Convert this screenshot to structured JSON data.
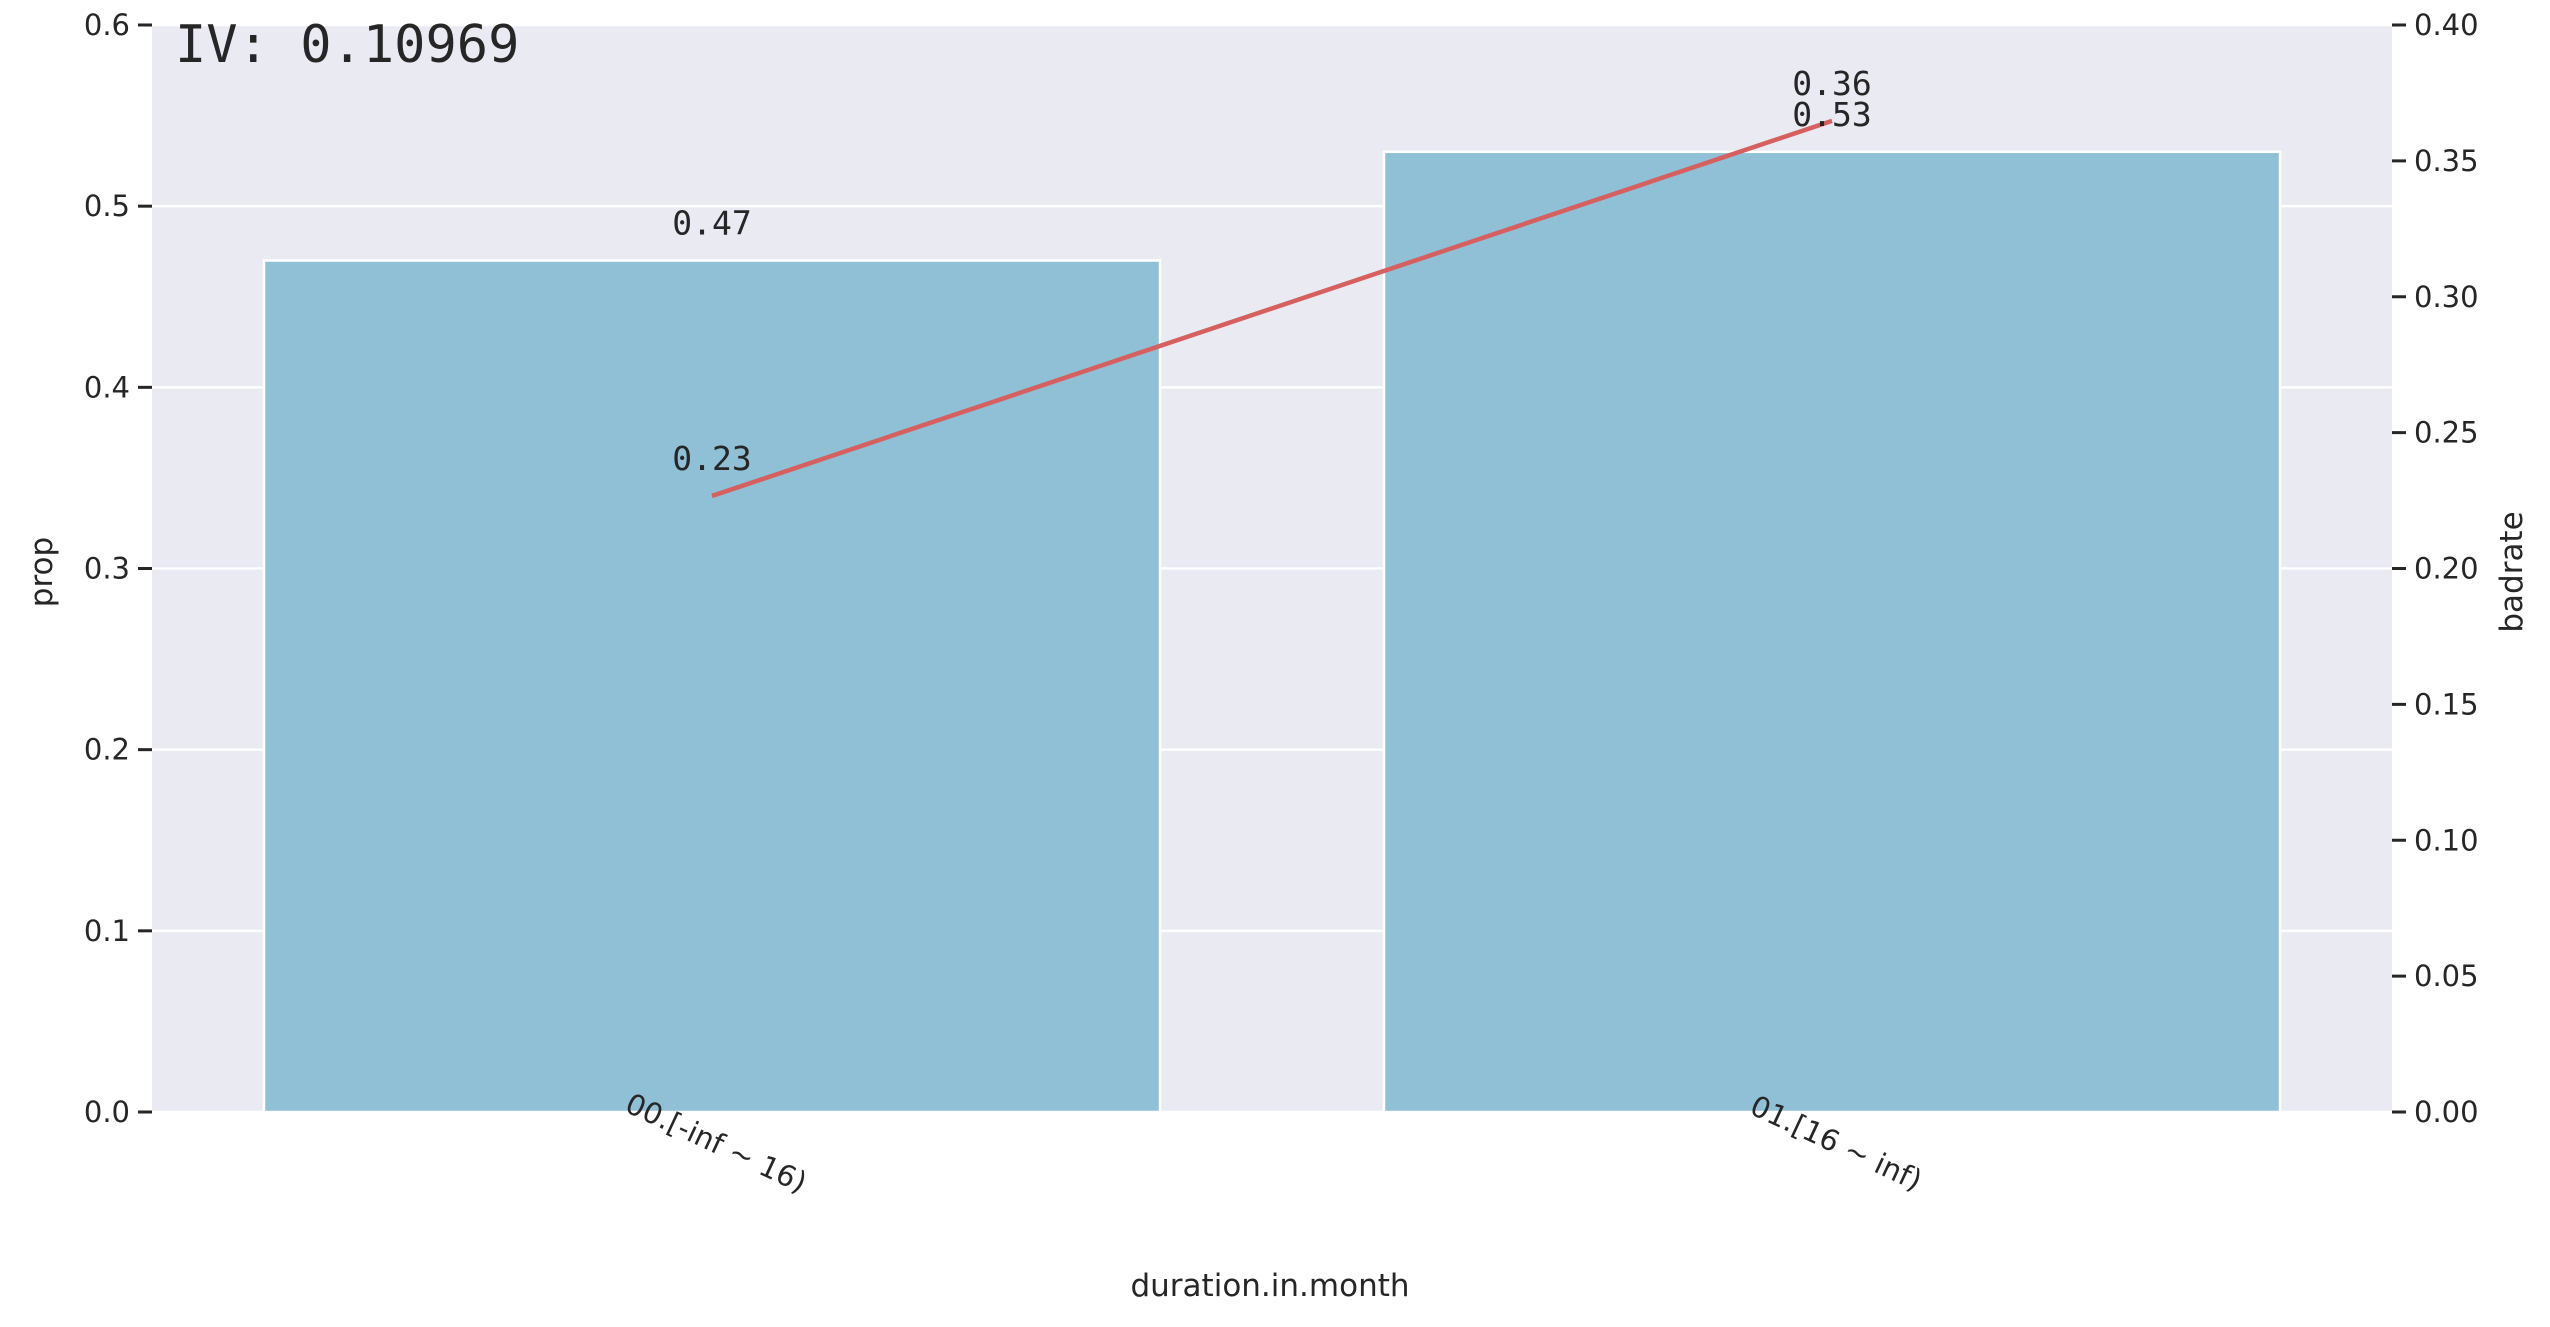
{
  "chart_data": {
    "type": "bar",
    "title": "IV: 0.10969",
    "xlabel": "duration.in.month",
    "ylabel": "prop",
    "y2label": "badrate",
    "categories": [
      "00.[-inf ~ 16)",
      "01.[16 ~ inf)"
    ],
    "series": [
      {
        "axis": "left",
        "kind": "bar",
        "values": [
          0.47,
          0.53
        ],
        "color": "#8fc0d6"
      },
      {
        "axis": "right",
        "kind": "line",
        "values": [
          0.2267,
          0.3647
        ],
        "color": "#d65f5f"
      }
    ],
    "bar_labels": [
      "0.47",
      "0.53"
    ],
    "line_labels": [
      "0.23",
      "0.36"
    ],
    "ylim": [
      0,
      0.6
    ],
    "y2lim": [
      0,
      0.4
    ],
    "yticks": [
      "0.0",
      "0.1",
      "0.2",
      "0.3",
      "0.4",
      "0.5",
      "0.6"
    ],
    "y2ticks": [
      "0.00",
      "0.05",
      "0.10",
      "0.15",
      "0.20",
      "0.25",
      "0.30",
      "0.35",
      "0.40"
    ],
    "grid": true,
    "background": "#eaeaf2"
  }
}
